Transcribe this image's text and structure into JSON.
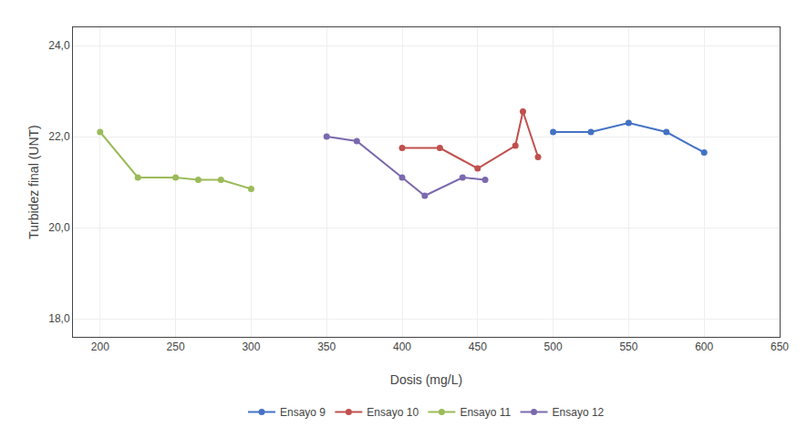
{
  "chart_data": {
    "type": "line",
    "xlabel": "Dosis (mg/L)",
    "ylabel": "Turbidez final (UNT)",
    "series": [
      {
        "name": "Ensayo 9",
        "color": "#4472C4",
        "x": [
          500,
          525,
          550,
          575,
          600
        ],
        "values": [
          22.1,
          22.1,
          22.3,
          22.1,
          21.65
        ]
      },
      {
        "name": "Ensayo 10",
        "color": "#C0504D",
        "x": [
          400,
          425,
          450,
          475,
          480,
          490
        ],
        "values": [
          21.75,
          21.75,
          21.3,
          21.8,
          22.55,
          21.55
        ]
      },
      {
        "name": "Ensayo 11",
        "color": "#9BBB59",
        "x": [
          200,
          225,
          250,
          265,
          280,
          300
        ],
        "values": [
          22.1,
          21.1,
          21.1,
          21.05,
          21.05,
          20.85
        ]
      },
      {
        "name": "Ensayo 12",
        "color": "#7B68AE",
        "x": [
          350,
          370,
          400,
          415,
          440,
          455
        ],
        "values": [
          22.0,
          21.9,
          21.1,
          20.7,
          21.1,
          21.05
        ]
      }
    ],
    "xlim": [
      182,
      650
    ],
    "ylim": [
      17.6,
      24.4
    ],
    "xticks": [
      200,
      250,
      300,
      350,
      400,
      450,
      500,
      550,
      600,
      650
    ],
    "yticks": [
      {
        "value": 18.0,
        "label": "18,0"
      },
      {
        "value": 20.0,
        "label": "20,0"
      },
      {
        "value": 22.0,
        "label": "22,0"
      },
      {
        "value": 24.0,
        "label": "24,0"
      }
    ],
    "grid": true,
    "legend": "bottom",
    "marker": "circle",
    "line_style": "solid"
  }
}
